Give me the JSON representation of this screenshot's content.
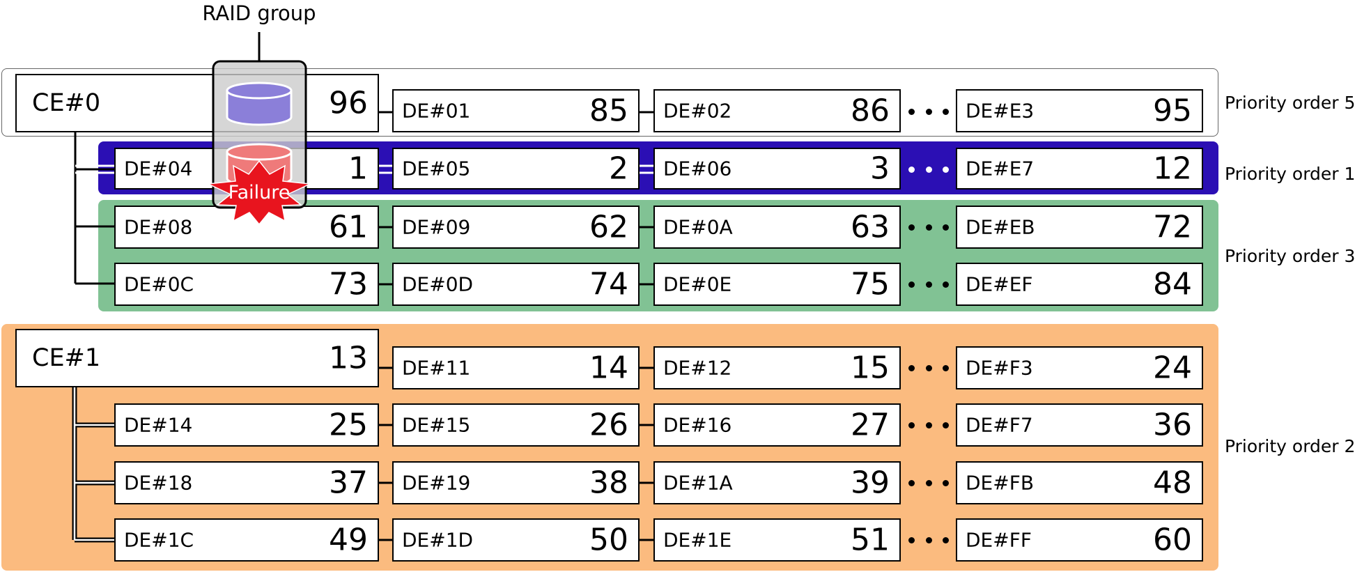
{
  "title": "RAID group",
  "failure_label": "Failure",
  "ce0": {
    "label": "CE#0",
    "value": "96"
  },
  "ce1": {
    "label": "CE#1",
    "value": "13"
  },
  "rows": [
    {
      "cells": [
        {
          "label": "DE#01",
          "value": "85"
        },
        {
          "label": "DE#02",
          "value": "86"
        },
        {
          "label": "DE#E3",
          "value": "95"
        }
      ]
    },
    {
      "cells": [
        {
          "label": "DE#04",
          "value": "1"
        },
        {
          "label": "DE#05",
          "value": "2"
        },
        {
          "label": "DE#06",
          "value": "3"
        },
        {
          "label": "DE#E7",
          "value": "12"
        }
      ]
    },
    {
      "cells": [
        {
          "label": "DE#08",
          "value": "61"
        },
        {
          "label": "DE#09",
          "value": "62"
        },
        {
          "label": "DE#0A",
          "value": "63"
        },
        {
          "label": "DE#EB",
          "value": "72"
        }
      ]
    },
    {
      "cells": [
        {
          "label": "DE#0C",
          "value": "73"
        },
        {
          "label": "DE#0D",
          "value": "74"
        },
        {
          "label": "DE#0E",
          "value": "75"
        },
        {
          "label": "DE#EF",
          "value": "84"
        }
      ]
    },
    {
      "cells": [
        {
          "label": "DE#11",
          "value": "14"
        },
        {
          "label": "DE#12",
          "value": "15"
        },
        {
          "label": "DE#F3",
          "value": "24"
        }
      ]
    },
    {
      "cells": [
        {
          "label": "DE#14",
          "value": "25"
        },
        {
          "label": "DE#15",
          "value": "26"
        },
        {
          "label": "DE#16",
          "value": "27"
        },
        {
          "label": "DE#F7",
          "value": "36"
        }
      ]
    },
    {
      "cells": [
        {
          "label": "DE#18",
          "value": "37"
        },
        {
          "label": "DE#19",
          "value": "38"
        },
        {
          "label": "DE#1A",
          "value": "39"
        },
        {
          "label": "DE#FB",
          "value": "48"
        }
      ]
    },
    {
      "cells": [
        {
          "label": "DE#1C",
          "value": "49"
        },
        {
          "label": "DE#1D",
          "value": "50"
        },
        {
          "label": "DE#1E",
          "value": "51"
        },
        {
          "label": "DE#FF",
          "value": "60"
        }
      ]
    }
  ],
  "priorities": {
    "p5": "Priority order 5",
    "p1": "Priority order 1",
    "p3": "Priority order 3",
    "p2": "Priority order 2"
  },
  "colors": {
    "p1_zone": "#2b0fb4",
    "p3_zone": "#81c294",
    "p2_zone": "#fbbb7f",
    "failure": "#e8141e",
    "disk_purple": "#8b7fd9",
    "disk_red": "#ef7a7a",
    "raid_fill": "#cccccc"
  }
}
